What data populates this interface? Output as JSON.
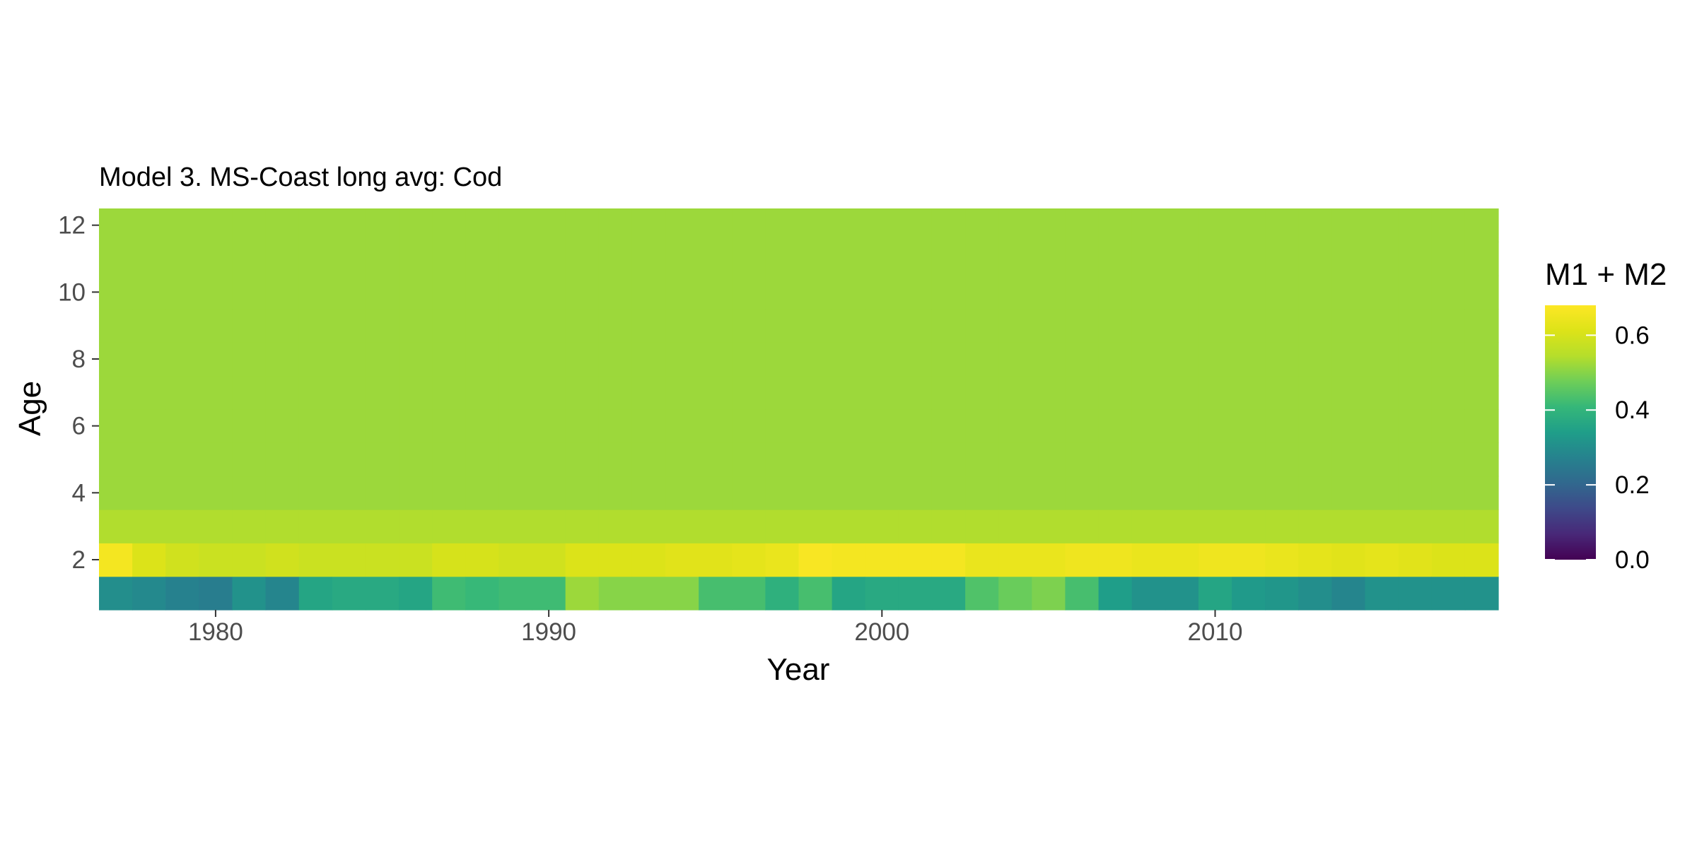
{
  "chart_data": {
    "type": "heatmap",
    "title": "Model 3. MS-Coast long avg: Cod",
    "xlabel": "Year",
    "ylabel": "Age",
    "x_range": [
      1976.5,
      2018.5
    ],
    "y_range": [
      0.5,
      12.5
    ],
    "x_ticks": [
      1980,
      1990,
      2000,
      2010
    ],
    "y_ticks": [
      2,
      4,
      6,
      8,
      10,
      12
    ],
    "grid": false,
    "legend": {
      "title": "M1 + M2",
      "position": "right",
      "colorscale": "viridis",
      "min": 0.0,
      "max": 0.68,
      "ticks": [
        0.0,
        0.2,
        0.4,
        0.6
      ]
    },
    "years": [
      1977,
      1978,
      1979,
      1980,
      1981,
      1982,
      1983,
      1984,
      1985,
      1986,
      1987,
      1988,
      1989,
      1990,
      1991,
      1992,
      1993,
      1994,
      1995,
      1996,
      1997,
      1998,
      1999,
      2000,
      2001,
      2002,
      2003,
      2004,
      2005,
      2006,
      2007,
      2008,
      2009,
      2010,
      2011,
      2012,
      2013,
      2014,
      2015,
      2016,
      2017,
      2018
    ],
    "ages": [
      1,
      2,
      3,
      4,
      5,
      6,
      7,
      8,
      9,
      10,
      11,
      12
    ],
    "age1_values": [
      0.3,
      0.29,
      0.27,
      0.26,
      0.31,
      0.28,
      0.36,
      0.37,
      0.37,
      0.36,
      0.42,
      0.41,
      0.42,
      0.42,
      0.52,
      0.5,
      0.5,
      0.5,
      0.43,
      0.43,
      0.39,
      0.43,
      0.36,
      0.37,
      0.37,
      0.37,
      0.44,
      0.47,
      0.49,
      0.43,
      0.34,
      0.31,
      0.31,
      0.36,
      0.33,
      0.32,
      0.3,
      0.28,
      0.31,
      0.31,
      0.31,
      0.31
    ],
    "age2_values": [
      0.66,
      0.61,
      0.59,
      0.58,
      0.58,
      0.59,
      0.58,
      0.58,
      0.58,
      0.58,
      0.6,
      0.6,
      0.59,
      0.59,
      0.61,
      0.61,
      0.61,
      0.62,
      0.62,
      0.63,
      0.64,
      0.67,
      0.66,
      0.66,
      0.66,
      0.66,
      0.64,
      0.64,
      0.64,
      0.65,
      0.65,
      0.64,
      0.64,
      0.65,
      0.65,
      0.64,
      0.63,
      0.62,
      0.63,
      0.62,
      0.61,
      0.61
    ],
    "age3_value": 0.54,
    "age4plus_value": 0.52
  }
}
